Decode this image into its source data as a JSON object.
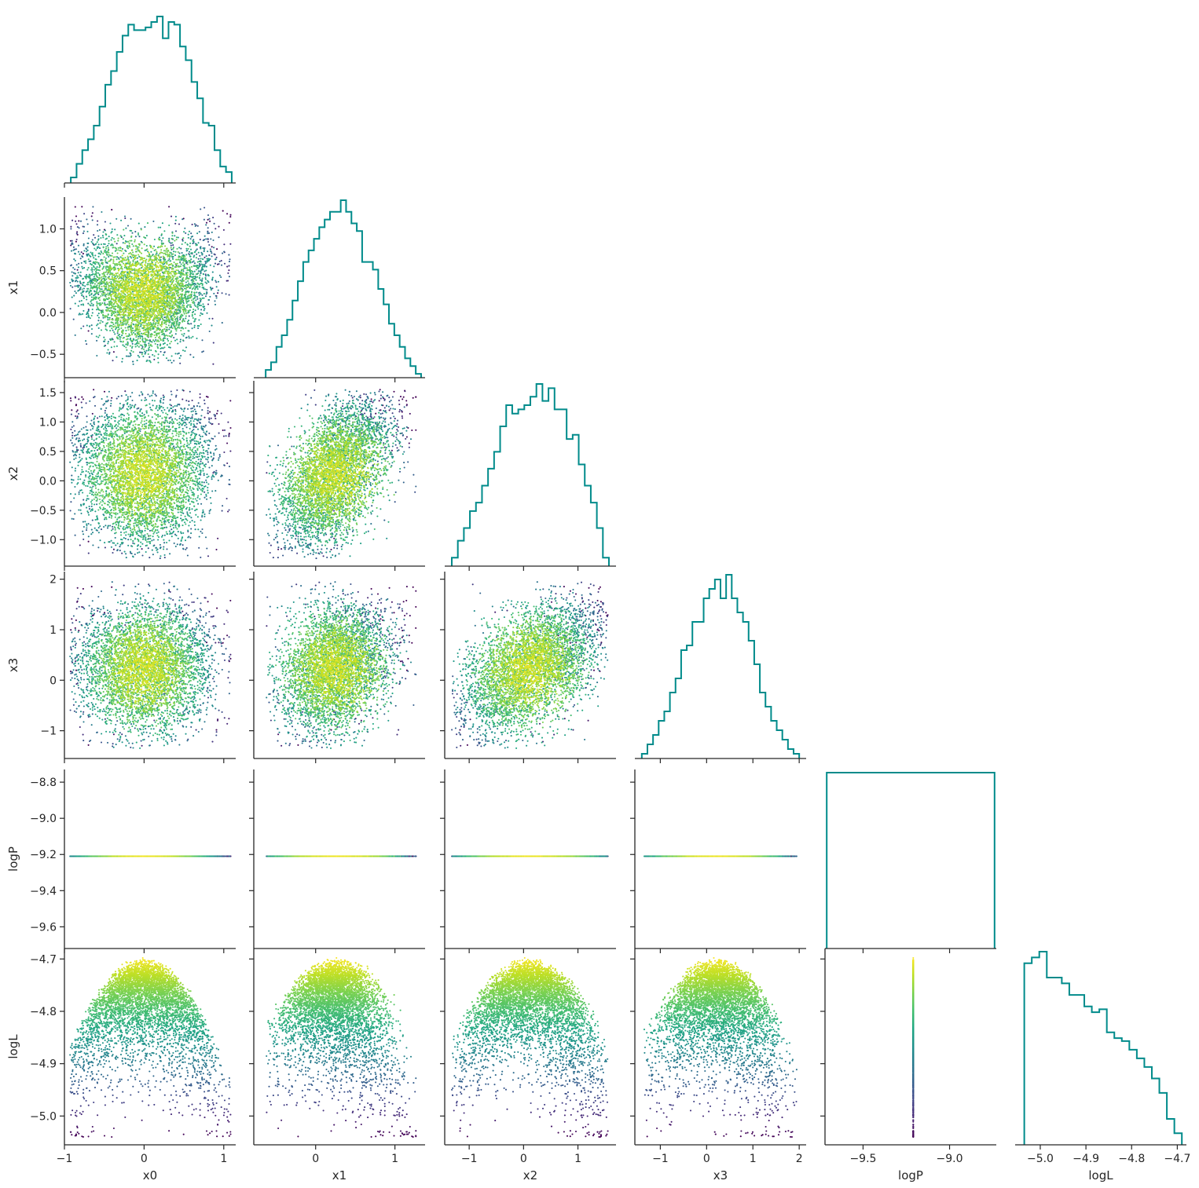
{
  "chart_data": {
    "type": "corner-plot",
    "title": "",
    "variables": [
      "x0",
      "x1",
      "x2",
      "x3",
      "logP",
      "logL"
    ],
    "ranges": {
      "x0": [
        -1.0,
        1.15
      ],
      "x1": [
        -0.78,
        1.38
      ],
      "x2": [
        -1.45,
        1.7
      ],
      "x3": [
        -1.55,
        2.15
      ],
      "logP": [
        -9.72,
        -8.73
      ],
      "logL": [
        -5.055,
        -4.68
      ]
    },
    "ticks": {
      "x0": [
        -1,
        0,
        1
      ],
      "x1": [
        0,
        1
      ],
      "x2": [
        -1,
        0,
        1
      ],
      "x3": [
        -1,
        0,
        1,
        2
      ],
      "logP": [
        -9.5,
        -9.0
      ],
      "logL": [
        -5.0,
        -4.9,
        -4.8,
        -4.7
      ]
    },
    "row_ticks": {
      "x1": [
        -0.5,
        0.0,
        0.5,
        1.0
      ],
      "x2": [
        -1.0,
        -0.5,
        0.0,
        0.5,
        1.0,
        1.5
      ],
      "x3": [
        -1,
        0,
        1,
        2
      ],
      "logP": [
        -9.6,
        -9.4,
        -9.2,
        -9.0,
        -8.8
      ],
      "logL": [
        -5.0,
        -4.9,
        -4.8,
        -4.7
      ]
    },
    "tick_labels": {
      "x0": [
        "−1",
        "0",
        "1"
      ],
      "x1": [
        "0",
        "1"
      ],
      "x2": [
        "−1",
        "0",
        "1"
      ],
      "x3": [
        "−1",
        "0",
        "1",
        "2"
      ],
      "logP": [
        "−9.5",
        "−9.0"
      ],
      "logL": [
        "−5.0",
        "−4.9",
        "−4.8",
        "−4.7"
      ]
    },
    "row_tick_labels": {
      "x1": [
        "−0.5",
        "0.0",
        "0.5",
        "1.0"
      ],
      "x2": [
        "−1.0",
        "−0.5",
        "0.0",
        "0.5",
        "1.0",
        "1.5"
      ],
      "x3": [
        "−1",
        "0",
        "1",
        "2"
      ],
      "logP": [
        "−9.6",
        "−9.4",
        "−9.2",
        "−9.0",
        "−8.8"
      ],
      "logL": [
        "−5.0",
        "−4.9",
        "−4.8",
        "−4.7"
      ]
    },
    "constant_logP": -9.21,
    "histograms": {
      "x0": {
        "edges": [
          -0.92,
          1.1
        ],
        "counts": [
          2,
          7,
          12,
          16,
          21,
          28,
          36,
          41,
          48,
          54,
          58,
          56,
          56,
          57,
          59,
          61,
          53,
          59,
          58,
          50,
          45,
          37,
          31,
          22,
          21,
          12,
          6,
          4
        ]
      },
      "x1": {
        "edges": [
          -0.63,
          1.33
        ],
        "counts": [
          2,
          4,
          8,
          11,
          15,
          20,
          25,
          30,
          33,
          36,
          39,
          41,
          43,
          43,
          46,
          43,
          40,
          38,
          30,
          30,
          28,
          23,
          19,
          14,
          11,
          8,
          5,
          3,
          1
        ]
      },
      "x2": {
        "edges": [
          -1.32,
          1.57
        ],
        "counts": [
          2,
          6,
          9,
          13,
          15,
          19,
          23,
          27,
          33,
          38,
          36,
          37,
          38,
          40,
          43,
          39,
          42,
          37,
          37,
          30,
          31,
          24,
          19,
          15,
          9,
          2
        ]
      },
      "x3": {
        "edges": [
          -1.4,
          2.0
        ],
        "counts": [
          1,
          3,
          5,
          8,
          10,
          14,
          17,
          23,
          24,
          29,
          29,
          34,
          36,
          38,
          34,
          39,
          34,
          31,
          29,
          25,
          20,
          14,
          11,
          8,
          6,
          4,
          2,
          1
        ]
      },
      "logP": {
        "edges": [
          -9.71,
          -8.74
        ],
        "counts": [
          1
        ]
      },
      "logL": {
        "edges": [
          -5.035,
          -4.69
        ],
        "counts": [
          63,
          65,
          67,
          58,
          58,
          56,
          52,
          52,
          48,
          46,
          47,
          39,
          37,
          36,
          33,
          30,
          27,
          23,
          18,
          9,
          4
        ]
      }
    },
    "grid": false,
    "legend": "none",
    "colors": {
      "hist": "#008b8b",
      "colormap": "viridis",
      "axis": "#262626"
    },
    "n_points_per_panel": 5000
  }
}
